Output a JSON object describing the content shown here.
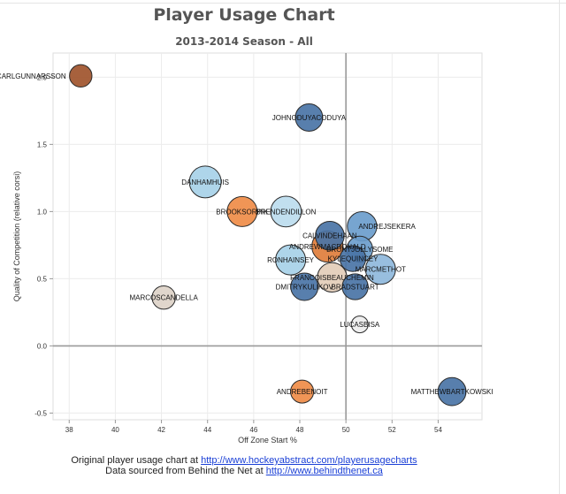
{
  "page": {
    "title": "Player Usage Chart",
    "subtitle": "2013-2014 Season - All"
  },
  "footer": {
    "line1_text": "Original player usage chart at ",
    "line1_link": "http://www.hockeyabstract.com/playerusagecharts",
    "line2_text": "Data sourced from Behind the Net at ",
    "line2_link": "http://www.behindthenet.ca"
  },
  "chart_data": {
    "type": "scatter",
    "title": "Player Usage Chart",
    "subtitle": "2013-2014 Season - All",
    "xlabel": "Off Zone Start %",
    "ylabel": "Quality of Competition (relative corsi)",
    "xlim": [
      37.3,
      55.9
    ],
    "ylim": [
      -0.55,
      2.18
    ],
    "xticks": [
      38,
      40,
      42,
      44,
      46,
      48,
      50,
      52,
      54
    ],
    "yticks": [
      -0.5,
      0.0,
      0.5,
      1.0,
      1.5,
      2.0
    ],
    "ytick_labels": [
      "-0.5",
      "0.0",
      "0.5",
      "1.0",
      "1.5",
      "2.0"
    ],
    "reference_lines": {
      "x": 50,
      "y": 0
    },
    "grid": true,
    "points": [
      {
        "label": "CARLGUNNARSSON",
        "x": 38.5,
        "y": 2.01,
        "size": 0.35,
        "color": "#a0542c",
        "label_pos": "left"
      },
      {
        "label": "JOHNODUYACODUYA",
        "x": 48.4,
        "y": 1.7,
        "size": 0.65,
        "color": "#4a74a6",
        "label_pos": "center"
      },
      {
        "label": "DANHAMHUIS",
        "x": 43.9,
        "y": 1.22,
        "size": 1.0,
        "color": "#a7d1e8",
        "label_pos": "center"
      },
      {
        "label": "BROOKSORPIK",
        "x": 45.5,
        "y": 1.0,
        "size": 0.85,
        "color": "#ef8c48",
        "label_pos": "center"
      },
      {
        "label": "BRENDENDILLON",
        "x": 47.4,
        "y": 1.0,
        "size": 0.9,
        "color": "#bcdcee",
        "label_pos": "center"
      },
      {
        "label": "ANDREJSEKERA",
        "x": 50.7,
        "y": 0.89,
        "size": 0.8,
        "color": "#6b9dcc",
        "label_pos": "right"
      },
      {
        "label": "CALVINDEHAAN",
        "x": 49.3,
        "y": 0.82,
        "size": 0.75,
        "color": "#4a74a6",
        "label_pos": "center"
      },
      {
        "label": "ANDREWMACDONALD",
        "x": 49.2,
        "y": 0.74,
        "size": 0.95,
        "color": "#e07e3c",
        "label_pos": "center"
      },
      {
        "label": "BRONTJOLLYSOME",
        "x": 50.6,
        "y": 0.72,
        "size": 0.55,
        "color": "#6b9dcc",
        "label_pos": "center"
      },
      {
        "label": "KYLEQUINCEY",
        "x": 50.3,
        "y": 0.65,
        "size": 0.55,
        "color": "#4a74a6",
        "label_pos": "center"
      },
      {
        "label": "RONHAINSEY",
        "x": 47.6,
        "y": 0.64,
        "size": 0.85,
        "color": "#a7d1e8",
        "label_pos": "center"
      },
      {
        "label": "MARCMETHOT",
        "x": 51.5,
        "y": 0.57,
        "size": 0.85,
        "color": "#8fb8dc",
        "label_pos": "center"
      },
      {
        "label": "FRANCOISBEAUCHEMIN",
        "x": 49.4,
        "y": 0.51,
        "size": 0.8,
        "color": "#e3cdb8",
        "label_pos": "center"
      },
      {
        "label": "DMITRYKULIKOV",
        "x": 48.2,
        "y": 0.44,
        "size": 0.65,
        "color": "#4a74a6",
        "label_pos": "center"
      },
      {
        "label": "BRADSTUART",
        "x": 50.4,
        "y": 0.44,
        "size": 0.55,
        "color": "#4a74a6",
        "label_pos": "center"
      },
      {
        "label": "MARCOSCANDELLA",
        "x": 42.1,
        "y": 0.36,
        "size": 0.4,
        "color": "#ddd3c8",
        "label_pos": "center"
      },
      {
        "label": "LUCASBISA",
        "x": 50.6,
        "y": 0.16,
        "size": 0.12,
        "color": "#eeeeee",
        "label_pos": "center"
      },
      {
        "label": "ANDREBENOIT",
        "x": 48.1,
        "y": -0.34,
        "size": 0.38,
        "color": "#ef8c48",
        "label_pos": "center"
      },
      {
        "label": "MATTHEWBARTKOWSKI",
        "x": 54.6,
        "y": -0.34,
        "size": 0.7,
        "color": "#4a74a6",
        "label_pos": "center"
      }
    ]
  }
}
